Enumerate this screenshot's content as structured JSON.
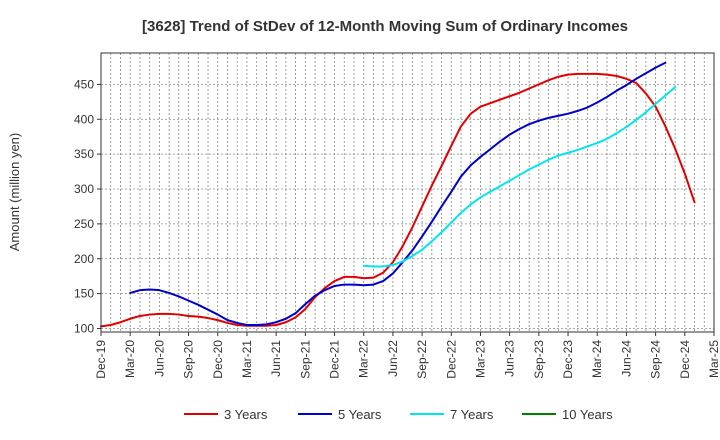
{
  "chart_data": {
    "type": "line",
    "title": "[3628]  Trend of StDev of 12-Month Moving Sum of Ordinary Incomes",
    "xlabel": "",
    "ylabel": "Amount (million yen)",
    "ylim": [
      95,
      495
    ],
    "yticks": [
      100,
      150,
      200,
      250,
      300,
      350,
      400,
      450
    ],
    "grid": true,
    "legend_position": "bottom",
    "x_start_label": "Dec-19",
    "x_tick_labels": [
      "Dec-19",
      "Mar-20",
      "Jun-20",
      "Sep-20",
      "Dec-20",
      "Mar-21",
      "Jun-21",
      "Sep-21",
      "Dec-21",
      "Mar-22",
      "Jun-22",
      "Sep-22",
      "Dec-22",
      "Mar-23",
      "Jun-23",
      "Sep-23",
      "Dec-23",
      "Mar-24",
      "Jun-24",
      "Sep-24",
      "Dec-24",
      "Mar-25"
    ],
    "series": [
      {
        "name": "3 Years",
        "color": "#e00000",
        "start_month": 0,
        "values": [
          103,
          105,
          109,
          114,
          118,
          120,
          121,
          121,
          120,
          118,
          117,
          115,
          112,
          108,
          105,
          104,
          104,
          104,
          105,
          109,
          116,
          128,
          145,
          158,
          168,
          174,
          174,
          172,
          173,
          180,
          195,
          218,
          245,
          275,
          305,
          333,
          362,
          390,
          408,
          418,
          423,
          428,
          433,
          438,
          444,
          450,
          456,
          461,
          464,
          465,
          465,
          465,
          464,
          462,
          458,
          452,
          437,
          418,
          390,
          358,
          322,
          281
        ]
      },
      {
        "name": "5 Years",
        "color": "#0000cc",
        "start_month": 3,
        "values": [
          151,
          155,
          156,
          155,
          151,
          146,
          140,
          134,
          127,
          120,
          112,
          108,
          105,
          105,
          106,
          109,
          114,
          122,
          135,
          147,
          155,
          161,
          163,
          163,
          162,
          163,
          168,
          179,
          195,
          212,
          232,
          253,
          275,
          296,
          318,
          334,
          346,
          357,
          368,
          378,
          386,
          393,
          398,
          402,
          405,
          408,
          412,
          417,
          424,
          432,
          441,
          449,
          458,
          466,
          474,
          481
        ]
      },
      {
        "name": "7 Years",
        "color": "#00e5ee",
        "start_month": 27,
        "values": [
          190,
          189,
          189,
          191,
          196,
          204,
          213,
          225,
          238,
          252,
          266,
          278,
          288,
          296,
          304,
          312,
          320,
          328,
          335,
          342,
          348,
          352,
          356,
          361,
          366,
          372,
          380,
          389,
          399,
          410,
          422,
          434,
          446
        ]
      },
      {
        "name": "10 Years",
        "color": "#008000",
        "start_month": 0,
        "values": []
      }
    ]
  }
}
